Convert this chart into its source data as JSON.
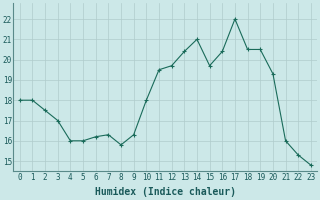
{
  "x": [
    0,
    1,
    2,
    3,
    4,
    5,
    6,
    7,
    8,
    9,
    10,
    11,
    12,
    13,
    14,
    15,
    16,
    17,
    18,
    19,
    20,
    21,
    22,
    23
  ],
  "y": [
    18,
    18,
    17.5,
    17,
    16,
    16,
    16.2,
    16.3,
    15.8,
    16.3,
    18,
    19.5,
    19.7,
    20.4,
    21,
    19.7,
    20.4,
    22,
    20.5,
    20.5,
    19.3,
    16,
    15.3,
    14.8
  ],
  "line_color": "#1a6b5a",
  "marker": "+",
  "background_color": "#cce8e8",
  "grid_color": "#b0cccc",
  "xlabel": "Humidex (Indice chaleur)",
  "xlabel_fontsize": 7,
  "ylabel_ticks": [
    15,
    16,
    17,
    18,
    19,
    20,
    21,
    22
  ],
  "ylim": [
    14.5,
    22.8
  ],
  "xlim": [
    -0.5,
    23.5
  ],
  "tick_fontsize": 5.5
}
